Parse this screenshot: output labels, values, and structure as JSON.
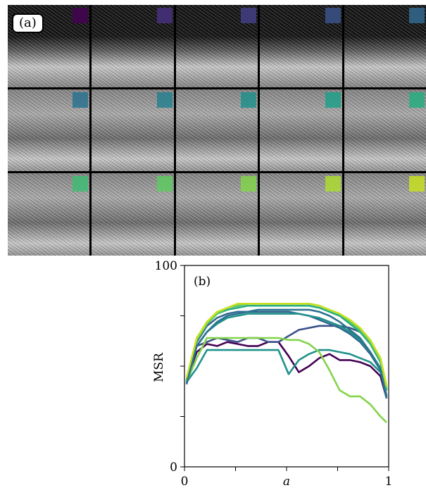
{
  "panel_a": {
    "label": "(a)",
    "rows": 3,
    "cols": 5,
    "swatch_colors": [
      "#440154",
      "#46307e",
      "#433e85",
      "#3b528b",
      "#31688e",
      "#2c728e",
      "#27808e",
      "#21918c",
      "#1fa088",
      "#28ae80",
      "#3fbc73",
      "#5ec962",
      "#84d44b",
      "#addc30",
      "#c8e020"
    ],
    "tile_colors": {
      "sky": "#0b0b0b",
      "foliage": "#8a8a8a",
      "highlight": "#d8d8d8"
    }
  },
  "chart_data": {
    "type": "line",
    "panel_label": "(b)",
    "xlabel": "a",
    "ylabel": "MSR",
    "xlim": [
      0,
      1
    ],
    "ylim": [
      0,
      100
    ],
    "x_ticks": [
      0,
      0.25,
      0.5,
      0.75,
      1
    ],
    "x_tick_labels": [
      "0",
      "",
      "a",
      "",
      "1"
    ],
    "y_ticks": [
      0,
      25,
      50,
      75,
      100
    ],
    "y_tick_labels": [
      "0",
      "",
      "",
      "",
      "100"
    ],
    "grid": false,
    "x": [
      0.01,
      0.06,
      0.11,
      0.16,
      0.21,
      0.26,
      0.31,
      0.36,
      0.41,
      0.46,
      0.51,
      0.56,
      0.61,
      0.66,
      0.71,
      0.76,
      0.81,
      0.86,
      0.91,
      0.96,
      0.99
    ],
    "series": [
      {
        "color": "#440154",
        "values": [
          43,
          57,
          61,
          60,
          62,
          61,
          60,
          60,
          62,
          62,
          55,
          47,
          50,
          54,
          56,
          53,
          53,
          52,
          50,
          45,
          34
        ]
      },
      {
        "color": "#3b528b",
        "values": [
          42,
          60,
          62,
          64,
          63,
          62,
          64,
          64,
          62,
          62,
          65,
          68,
          69,
          70,
          70,
          70,
          69,
          67,
          62,
          52,
          35
        ]
      },
      {
        "color": "#31688e",
        "values": [
          42,
          62,
          70,
          74,
          76,
          77,
          77,
          77,
          77,
          77,
          77,
          76,
          75,
          73,
          71,
          69,
          66,
          62,
          56,
          48,
          34
        ]
      },
      {
        "color": "#21918c",
        "values": [
          41,
          60,
          67,
          71,
          74,
          75,
          76,
          76,
          76,
          76,
          76,
          76,
          75,
          74,
          72,
          70,
          67,
          63,
          57,
          49,
          35
        ]
      },
      {
        "color": "#21918c",
        "values": [
          42,
          49,
          58,
          58,
          58,
          58,
          58,
          58,
          58,
          58,
          46,
          53,
          56,
          58,
          58,
          57,
          56,
          54,
          52,
          47,
          38
        ]
      },
      {
        "color": "#28ae80",
        "values": [
          43,
          63,
          71,
          76,
          78,
          79,
          80,
          80,
          80,
          80,
          80,
          80,
          80,
          79,
          77,
          75,
          71,
          67,
          61,
          52,
          38
        ]
      },
      {
        "color": "#5ec962",
        "values": [
          43,
          63,
          71,
          76,
          79,
          80,
          81,
          81,
          81,
          81,
          81,
          81,
          81,
          80,
          78,
          76,
          72,
          68,
          62,
          53,
          39
        ]
      },
      {
        "color": "#84d44b",
        "values": [
          42,
          54,
          64,
          64,
          64,
          64,
          64,
          64,
          64,
          64,
          63,
          63,
          61,
          57,
          48,
          38,
          35,
          35,
          31,
          25,
          22
        ]
      },
      {
        "color": "#c8e020",
        "values": [
          44,
          64,
          72,
          77,
          79,
          81,
          81,
          81,
          81,
          81,
          81,
          81,
          81,
          80,
          78,
          76,
          73,
          69,
          63,
          54,
          40
        ]
      },
      {
        "color": "#2c728e",
        "values": [
          41,
          60,
          67,
          72,
          75,
          76,
          77,
          78,
          78,
          78,
          78,
          78,
          78,
          77,
          75,
          72,
          68,
          64,
          57,
          48,
          34
        ]
      }
    ]
  }
}
